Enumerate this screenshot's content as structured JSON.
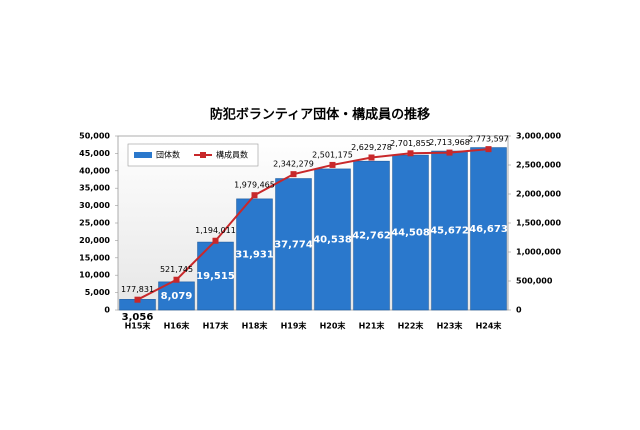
{
  "chart_data": {
    "type": "combo",
    "title": "防犯ボランティア団体・構成員の推移",
    "categories": [
      "H15末",
      "H16末",
      "H17末",
      "H18末",
      "H19末",
      "H20末",
      "H21末",
      "H22末",
      "H23末",
      "H24末"
    ],
    "series": [
      {
        "name": "団体数",
        "type": "bar",
        "color": "#2a78cc",
        "values": [
          3056,
          8079,
          19515,
          31931,
          37774,
          40538,
          42762,
          44508,
          45672,
          46673
        ],
        "value_labels": [
          "3,056",
          "8,079",
          "19,515",
          "31,931",
          "37,774",
          "40,538",
          "42,762",
          "44,508",
          "45,672",
          "46,673"
        ]
      },
      {
        "name": "構成員数",
        "type": "line",
        "axis": "y2",
        "color": "#c8282a",
        "values": [
          177831,
          521745,
          1194011,
          1979465,
          2342279,
          2501175,
          2629278,
          2701855,
          2713968,
          2773597
        ],
        "value_labels": [
          "177,831",
          "521,745",
          "1,194,011",
          "1,979,465",
          "2,342,279",
          "2,501,175",
          "2,629,278",
          "2,701,855",
          "2,713,968",
          "2,773,597"
        ]
      }
    ],
    "ylim": [
      0,
      50000
    ],
    "yticks": [
      0,
      {
        "value": 5000,
        "label": "5,000"
      },
      {
        "value": 10000,
        "label": "10,000"
      },
      {
        "value": 15000,
        "label": "15,000"
      },
      {
        "value": 20000,
        "label": "20,000"
      },
      {
        "value": 25000,
        "label": "25,000"
      },
      {
        "value": 30000,
        "label": "30,000"
      },
      {
        "value": 35000,
        "label": "35,000"
      },
      {
        "value": 40000,
        "label": "40,000"
      },
      {
        "value": 45000,
        "label": "45,000"
      },
      {
        "value": 50000,
        "label": "50,000"
      }
    ],
    "y2lim": [
      0,
      3000000
    ],
    "y2ticks": [
      0,
      {
        "value": 500000,
        "label": "500,000"
      },
      {
        "value": 1000000,
        "label": "1,000,000"
      },
      {
        "value": 1500000,
        "label": "1,500,000"
      },
      {
        "value": 2000000,
        "label": "2,000,000"
      },
      {
        "value": 2500000,
        "label": "2,500,000"
      },
      {
        "value": 3000000,
        "label": "3,000,000"
      }
    ],
    "legend": "upper-left"
  }
}
